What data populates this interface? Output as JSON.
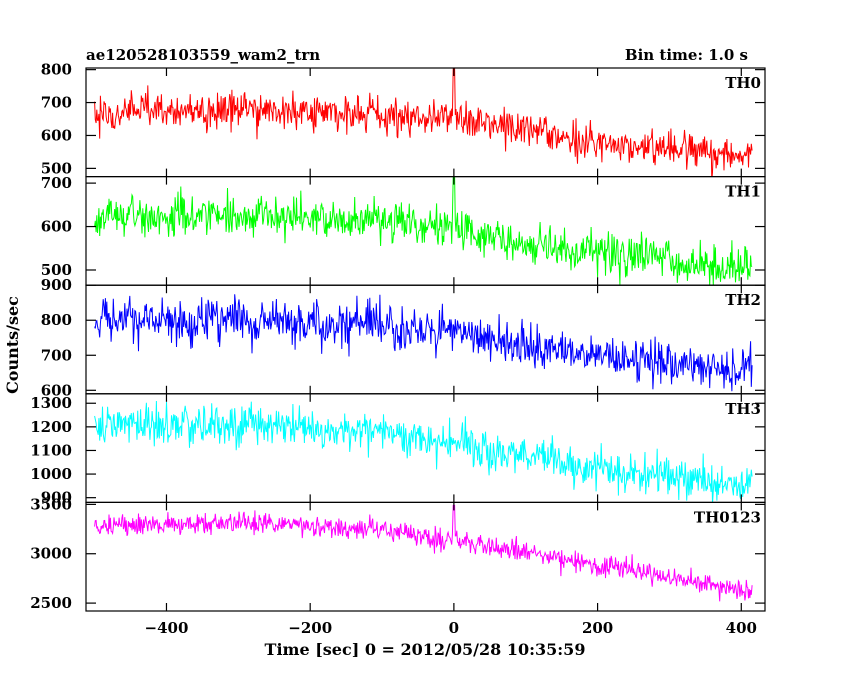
{
  "header": {
    "left_title": "ae120528103559_wam2_trn",
    "right_title": "Bin time: 1.0 s"
  },
  "axes": {
    "xlabel": "Time [sec] 0 = 2012/05/28 10:35:59",
    "ylabel": "Counts/sec"
  },
  "chart_data": {
    "type": "line",
    "bin_time_s": 1.0,
    "x_ticks": [
      "−400",
      "−200",
      "0",
      "200",
      "400"
    ],
    "xlim": [
      -512,
      433
    ],
    "x_data_range": [
      -500,
      415
    ],
    "panels": [
      {
        "name": "TH0",
        "color": "#ff0000",
        "ylim": [
          475,
          805
        ],
        "ticks": [
          500,
          600,
          700,
          800
        ],
        "trend": [
          [
            -500,
            670
          ],
          [
            -300,
            680
          ],
          [
            -100,
            665
          ],
          [
            0,
            650
          ],
          [
            100,
            615
          ],
          [
            200,
            580
          ],
          [
            300,
            560
          ],
          [
            415,
            535
          ]
        ],
        "noise_sd": 27,
        "spike": {
          "x": 0,
          "peak": 805
        }
      },
      {
        "name": "TH1",
        "color": "#00ff00",
        "ylim": [
          465,
          715
        ],
        "ticks": [
          500,
          600,
          700
        ],
        "trend": [
          [
            -500,
            625
          ],
          [
            -300,
            625
          ],
          [
            -150,
            615
          ],
          [
            0,
            595
          ],
          [
            100,
            560
          ],
          [
            200,
            540
          ],
          [
            300,
            520
          ],
          [
            415,
            505
          ]
        ],
        "noise_sd": 24,
        "spike": {
          "x": 0,
          "peak": 715
        }
      },
      {
        "name": "TH2",
        "color": "#0000ff",
        "ylim": [
          590,
          900
        ],
        "ticks": [
          600,
          700,
          800,
          900
        ],
        "trend": [
          [
            -500,
            800
          ],
          [
            -300,
            800
          ],
          [
            -100,
            780
          ],
          [
            0,
            760
          ],
          [
            100,
            730
          ],
          [
            200,
            700
          ],
          [
            300,
            675
          ],
          [
            415,
            655
          ]
        ],
        "noise_sd": 30,
        "spike": null
      },
      {
        "name": "TH3",
        "color": "#00ffff",
        "ylim": [
          880,
          1340
        ],
        "ticks": [
          900,
          1000,
          1100,
          1200,
          1300
        ],
        "trend": [
          [
            -500,
            1200
          ],
          [
            -300,
            1210
          ],
          [
            -100,
            1175
          ],
          [
            0,
            1135
          ],
          [
            100,
            1080
          ],
          [
            200,
            1030
          ],
          [
            300,
            985
          ],
          [
            415,
            950
          ]
        ],
        "noise_sd": 42,
        "spike": null
      },
      {
        "name": "TH0123",
        "color": "#ff00ff",
        "ylim": [
          2420,
          3520
        ],
        "ticks": [
          2500,
          3000,
          3500
        ],
        "trend": [
          [
            -500,
            3270
          ],
          [
            -300,
            3320
          ],
          [
            -100,
            3230
          ],
          [
            0,
            3130
          ],
          [
            100,
            3010
          ],
          [
            200,
            2890
          ],
          [
            300,
            2760
          ],
          [
            415,
            2610
          ]
        ],
        "noise_sd": 55,
        "spike": {
          "x": 0,
          "peak": 3490
        }
      }
    ]
  }
}
